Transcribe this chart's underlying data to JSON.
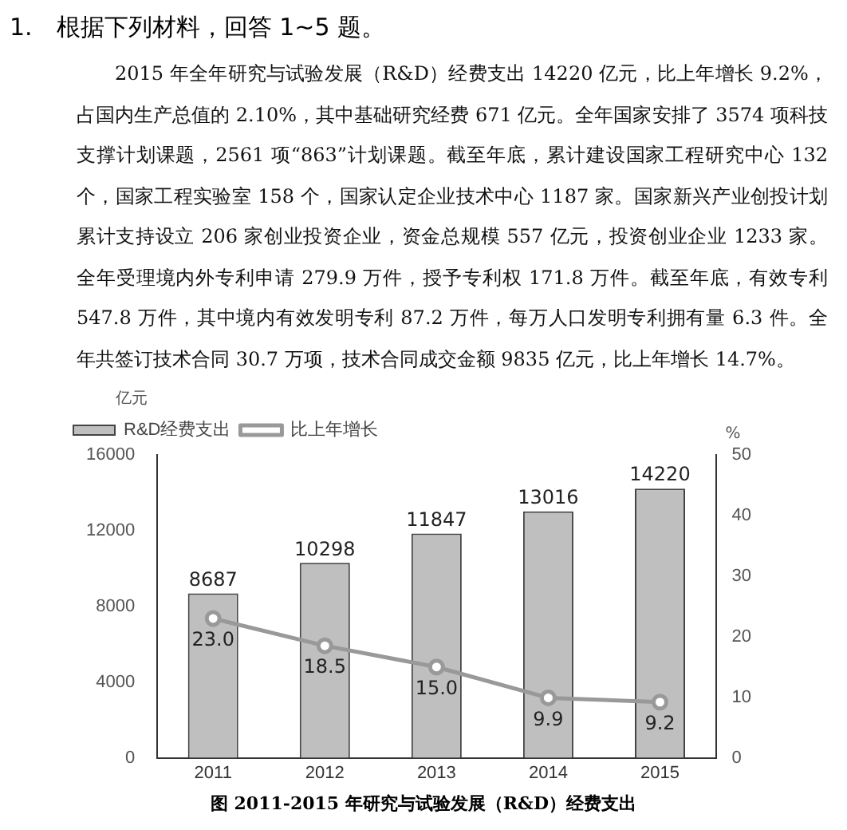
{
  "chart_data": {
    "type": "bar",
    "title": "图 2011-2015 年研究与试验发展（R&D）经费支出",
    "annotations": [
      "1.　根据下列材料，回答 1~5 题。",
      "2015 年全年研究与试验发展（R&D）经费支出 14220 亿元，比上年增长 9.2%，占国内生产总值的 2.10%，其中基础研究经费 671 亿元。全年国家安排了 3574 项科技支撑计划课题，2561 项“863”计划课题。截至年底，累计建设国家工程研究中心 132 个，国家工程实验室 158 个，国家认定企业技术中心 1187 家。国家新兴产业创投计划累计支持设立 206 家创业投资企业，资金总规模 557 亿元，投资创业企业 1233 家。全年受理境内外专利申请 279.9 万件，授予专利权 171.8 万件。截至年底，有效专利 547.8 万件，其中境内有效发明专利 87.2 万件，每万人口发明专利拥有量 6.3 件。全年共签订技术合同 30.7 万项，技术合同成交金额 9835 亿元，比上年增长 14.7%。"
    ],
    "ylabel": "亿元",
    "y2label": "%",
    "categories": [
      "2011",
      "2012",
      "2013",
      "2014",
      "2015"
    ],
    "series": [
      {
        "name": "R&D经费支出",
        "color": "#bfbfbf",
        "values": [
          8687,
          10298,
          11847,
          13016,
          14220
        ]
      },
      {
        "name": "比上年增长",
        "type": "line",
        "axis": "y2",
        "color": "#999999",
        "values": [
          23.0,
          18.5,
          15.0,
          9.9,
          9.2
        ],
        "value_labels": [
          "23.0",
          "18.5",
          "15.0",
          "9.9",
          "9.2"
        ]
      }
    ],
    "ylim": [
      0,
      16000
    ],
    "yticks": [
      0,
      4000,
      8000,
      12000,
      16000
    ],
    "y2lim": [
      0,
      50
    ],
    "y2ticks": [
      0,
      10,
      20,
      30,
      40,
      50
    ],
    "data_labels": true,
    "grid": false,
    "legend": "top left",
    "marker": "circle",
    "line_style": "solid"
  }
}
